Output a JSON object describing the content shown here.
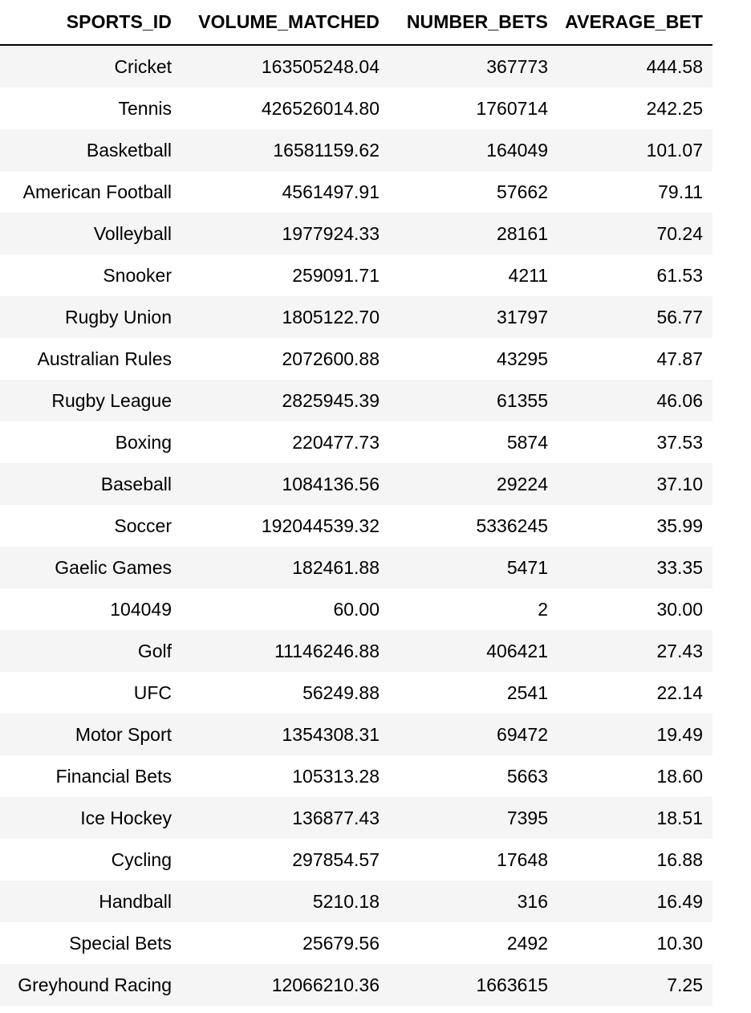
{
  "dataframe": {
    "columns": [
      "SPORTS_ID",
      "VOLUME_MATCHED",
      "NUMBER_BETS",
      "AVERAGE_BET"
    ],
    "rows": [
      [
        "Cricket",
        "163505248.04",
        "367773",
        "444.58"
      ],
      [
        "Tennis",
        "426526014.80",
        "1760714",
        "242.25"
      ],
      [
        "Basketball",
        "16581159.62",
        "164049",
        "101.07"
      ],
      [
        "American Football",
        "4561497.91",
        "57662",
        "79.11"
      ],
      [
        "Volleyball",
        "1977924.33",
        "28161",
        "70.24"
      ],
      [
        "Snooker",
        "259091.71",
        "4211",
        "61.53"
      ],
      [
        "Rugby Union",
        "1805122.70",
        "31797",
        "56.77"
      ],
      [
        "Australian Rules",
        "2072600.88",
        "43295",
        "47.87"
      ],
      [
        "Rugby League",
        "2825945.39",
        "61355",
        "46.06"
      ],
      [
        "Boxing",
        "220477.73",
        "5874",
        "37.53"
      ],
      [
        "Baseball",
        "1084136.56",
        "29224",
        "37.10"
      ],
      [
        "Soccer",
        "192044539.32",
        "5336245",
        "35.99"
      ],
      [
        "Gaelic Games",
        "182461.88",
        "5471",
        "33.35"
      ],
      [
        "104049",
        "60.00",
        "2",
        "30.00"
      ],
      [
        "Golf",
        "11146246.88",
        "406421",
        "27.43"
      ],
      [
        "UFC",
        "56249.88",
        "2541",
        "22.14"
      ],
      [
        "Motor Sport",
        "1354308.31",
        "69472",
        "19.49"
      ],
      [
        "Financial Bets",
        "105313.28",
        "5663",
        "18.60"
      ],
      [
        "Ice Hockey",
        "136877.43",
        "7395",
        "18.51"
      ],
      [
        "Cycling",
        "297854.57",
        "17648",
        "16.88"
      ],
      [
        "Handball",
        "5210.18",
        "316",
        "16.49"
      ],
      [
        "Special Bets",
        "25679.56",
        "2492",
        "10.30"
      ],
      [
        "Greyhound Racing",
        "12066210.36",
        "1663615",
        "7.25"
      ]
    ]
  },
  "colors": {
    "stripe": "#f5f5f5",
    "background": "#ffffff",
    "text": "#000000",
    "header_rule": "#000000"
  }
}
